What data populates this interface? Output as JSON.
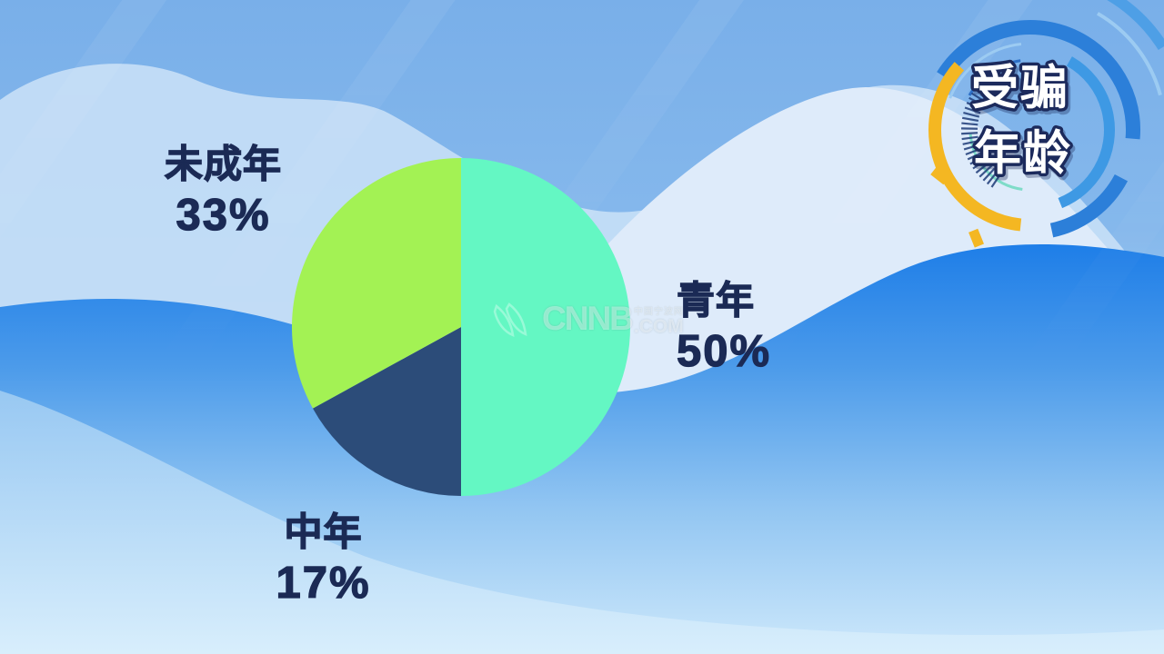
{
  "title_badge": {
    "line1": "受骗",
    "line2": "年龄"
  },
  "watermark": {
    "site_name": "CNNB",
    "site_cjk": "中国宁波网",
    "tld": ".COM"
  },
  "chart_data": {
    "type": "pie",
    "title": "受骗年龄",
    "start_angle_deg": 0,
    "direction": "clockwise",
    "total": 100,
    "slices": [
      {
        "label": "青年",
        "value": 50,
        "pct_label": "50%",
        "color": "#64F7C3"
      },
      {
        "label": "中年",
        "value": 17,
        "pct_label": "17%",
        "color": "#2C4C79"
      },
      {
        "label": "未成年",
        "value": 33,
        "pct_label": "33%",
        "color": "#A3F254"
      }
    ],
    "label_color": "#1B2A55",
    "legend_position": "labels-outside"
  },
  "colors": {
    "background_top": "#79AFE9",
    "background_bottom": "#D4EBFB",
    "wave_strong_blue": "#1E7EE8",
    "badge_arc_blue": "#2C7FD9",
    "badge_arc_yellow": "#F4B722",
    "badge_text_fill": "#FFFFFF",
    "badge_text_outline": "#1B2B5C"
  }
}
